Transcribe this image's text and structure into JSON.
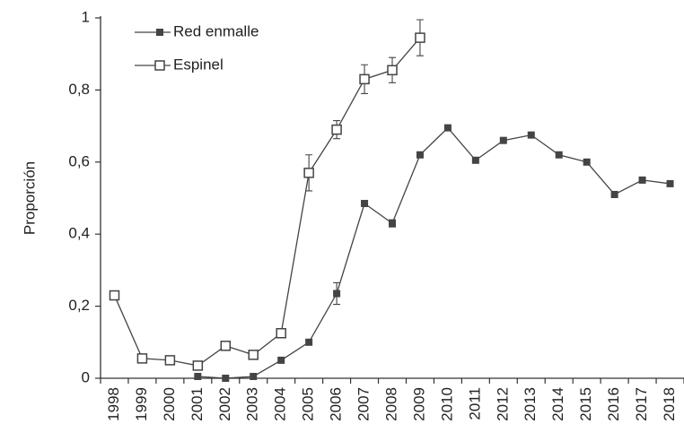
{
  "chart_data": {
    "type": "line",
    "y_label": "Proporción",
    "categories": [
      "1998",
      "1999",
      "2000",
      "2001",
      "2002",
      "2003",
      "2004",
      "2005",
      "2006",
      "2007",
      "2008",
      "2009",
      "2010",
      "2011",
      "2012",
      "2013",
      "2014",
      "2015",
      "2016",
      "2017",
      "2018"
    ],
    "series": [
      {
        "name": "Red enmalle",
        "color": "#444",
        "marker": "filled-square",
        "values": [
          null,
          null,
          null,
          0.005,
          0.0,
          0.005,
          0.05,
          0.1,
          0.235,
          0.485,
          0.43,
          0.62,
          0.695,
          0.605,
          0.66,
          0.675,
          0.62,
          0.6,
          0.51,
          0.55,
          0.54
        ],
        "errors": [
          null,
          null,
          null,
          null,
          null,
          null,
          null,
          null,
          0.03,
          null,
          0.01,
          null,
          null,
          null,
          null,
          null,
          null,
          null,
          null,
          null,
          null
        ]
      },
      {
        "name": "Espinel",
        "color": "#444",
        "marker": "open-square",
        "values": [
          0.23,
          0.055,
          0.05,
          0.035,
          0.09,
          0.065,
          0.125,
          0.57,
          0.69,
          0.83,
          0.855,
          0.945,
          null,
          null,
          null,
          null,
          null,
          null,
          null,
          null,
          null
        ],
        "errors": [
          null,
          null,
          null,
          null,
          null,
          null,
          null,
          0.05,
          0.025,
          0.04,
          0.035,
          0.05,
          null,
          null,
          null,
          null,
          null,
          null,
          null,
          null,
          null
        ]
      }
    ],
    "ylim": [
      0,
      1
    ],
    "yticks": [
      0,
      {
        "value": 0.2,
        "label": "0,2"
      },
      {
        "value": 0.4,
        "label": "0,4"
      },
      {
        "value": 0.6,
        "label": "0,6"
      },
      {
        "value": 0.8,
        "label": "0,8"
      },
      1
    ],
    "grid": false
  }
}
